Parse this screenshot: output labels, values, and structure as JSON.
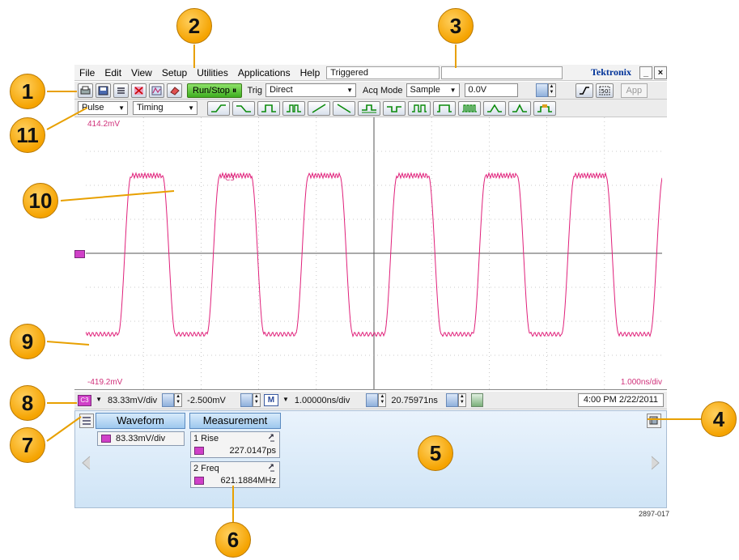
{
  "menubar": {
    "items": [
      "File",
      "Edit",
      "View",
      "Setup",
      "Utilities",
      "Applications",
      "Help"
    ],
    "status": "Triggered",
    "brand": "Tektronix",
    "minimize": "_",
    "close": "×"
  },
  "toolbar": {
    "icons": [
      "print-icon",
      "save-icon",
      "measure-select-icon",
      "clear-icon",
      "waveform-icon",
      "eraser-icon"
    ],
    "runstop_label": "Run/Stop",
    "trig_label": "Trig",
    "trig_value": "Direct",
    "acqmode_label": "Acq Mode",
    "acqmode_value": "Sample",
    "level_value": "0.0V",
    "app_label": "App"
  },
  "trigbar": {
    "type_value": "Pulse",
    "class_value": "Timing",
    "icons": [
      "rising-edge-icon",
      "falling-edge-icon",
      "positive-pulse-icon",
      "positive-pulse-dual-icon",
      "rise-slope-icon",
      "fall-slope-icon",
      "positive-glitch-icon",
      "negative-glitch-icon",
      "pulse-train-icon",
      "wide-pulse-icon",
      "burst-icon",
      "runt-positive-icon",
      "runt-negative-icon",
      "timeout-icon"
    ]
  },
  "graticule": {
    "top_label": "414.2mV",
    "bottom_label": "-419.2mV",
    "timebase_label": "1.000ns/div",
    "trace_color": "#e0207a",
    "channel_label": "C3"
  },
  "chanbar": {
    "channel": "C3",
    "vscale": "83.33mV/div",
    "offset": "-2.500mV",
    "math_label": "M",
    "hscale": "1.00000ns/div",
    "delay": "20.75971ns",
    "datetime": "4:00 PM 2/22/2011"
  },
  "results": {
    "waveform_tab": "Waveform",
    "measurement_tab": "Measurement",
    "waveform_value": "83.33mV/div",
    "measurements": [
      {
        "name": "1 Rise",
        "value": "227.0147ps"
      },
      {
        "name": "2 Freq",
        "value": "621.1884MHz"
      }
    ]
  },
  "callouts": [
    "1",
    "2",
    "3",
    "4",
    "5",
    "6",
    "7",
    "8",
    "9",
    "10",
    "11"
  ],
  "figure_id": "2897-017"
}
